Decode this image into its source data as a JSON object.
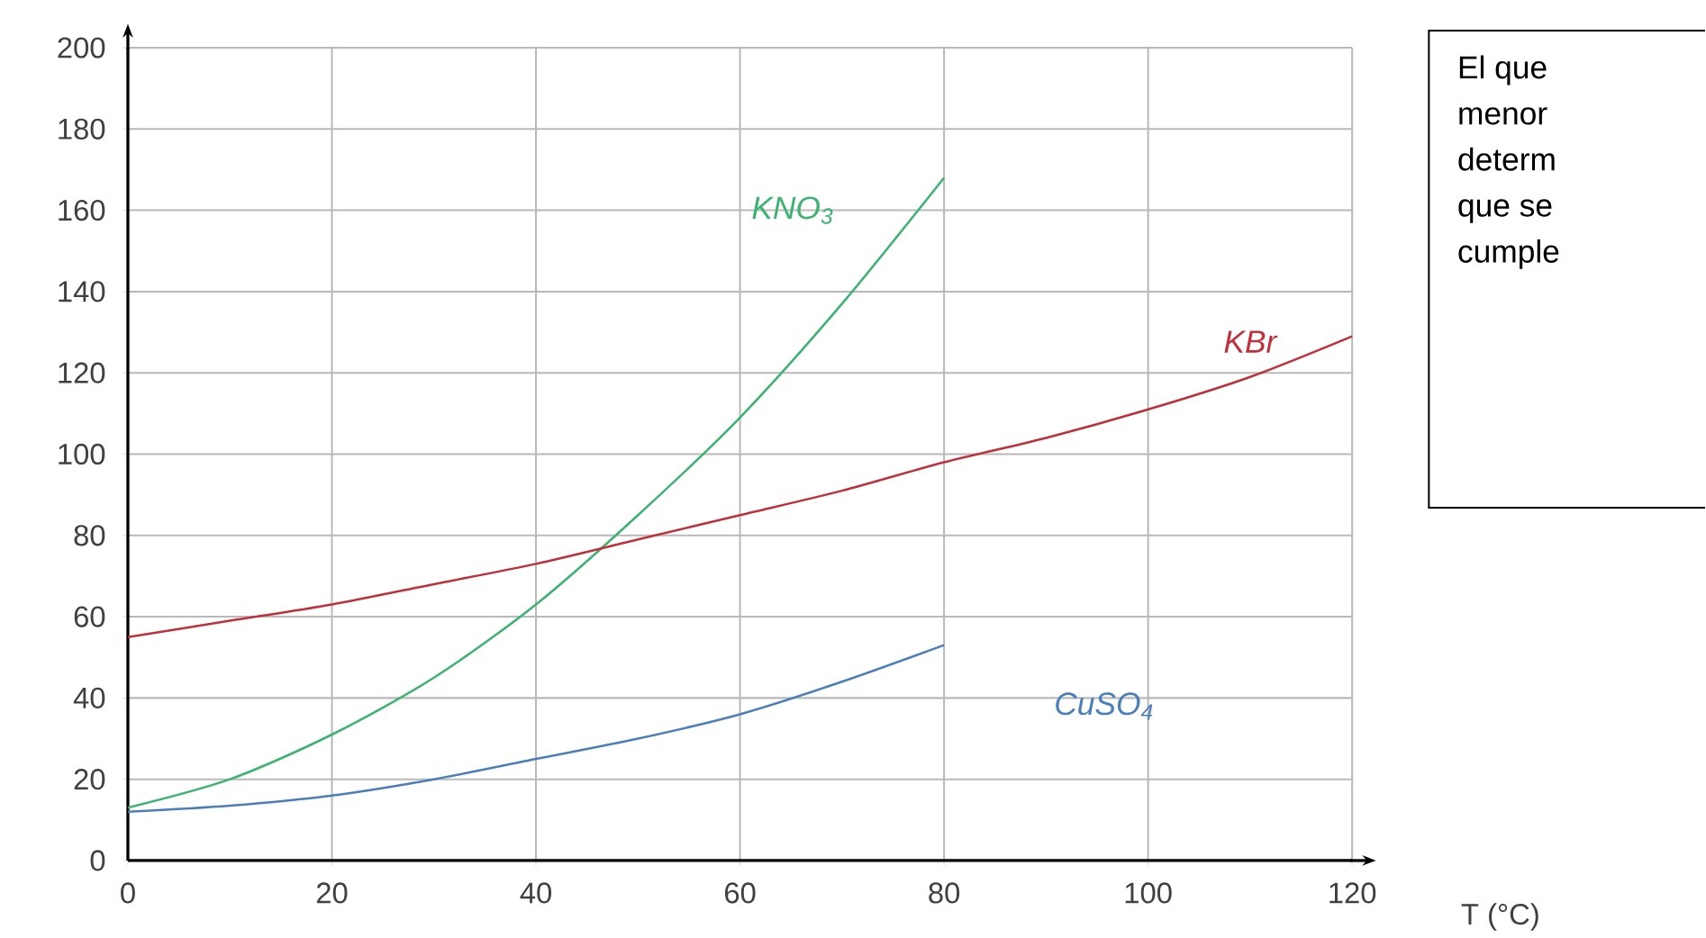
{
  "chart_data": {
    "type": "line",
    "x": [
      0,
      10,
      20,
      30,
      40,
      50,
      60,
      70,
      80,
      90,
      100,
      110,
      120
    ],
    "series": [
      {
        "name": "KNO$_{3}$",
        "color": "#3cb371",
        "x": [
          0,
          10,
          20,
          30,
          40,
          50,
          60,
          70,
          80
        ],
        "values": [
          13,
          20,
          31,
          45,
          63,
          85,
          109,
          137,
          168
        ]
      },
      {
        "name": "KBr",
        "color": "#c0303a",
        "values": [
          55,
          59,
          63,
          68,
          73,
          79,
          85,
          91,
          98,
          104,
          111,
          119,
          129
        ]
      },
      {
        "name": "CuSO$_{4}$",
        "color": "#4a7ebb",
        "x": [
          0,
          10,
          20,
          30,
          40,
          50,
          60,
          70,
          80
        ],
        "values": [
          12,
          13.5,
          16,
          20,
          25,
          30,
          36,
          44,
          53
        ]
      }
    ],
    "xlabel": "T (°C)",
    "xlim": [
      0,
      120
    ],
    "xticks": [
      0,
      20,
      40,
      60,
      80,
      100,
      120
    ],
    "ylim": [
      0,
      200
    ],
    "yticks": [
      0,
      20,
      40,
      60,
      80,
      100,
      120,
      140,
      160,
      180,
      200
    ],
    "grid": true,
    "marker": "none",
    "line_style": "solid",
    "annotations": [
      "El que",
      "menor",
      "determ",
      "que se",
      "cumple"
    ]
  }
}
